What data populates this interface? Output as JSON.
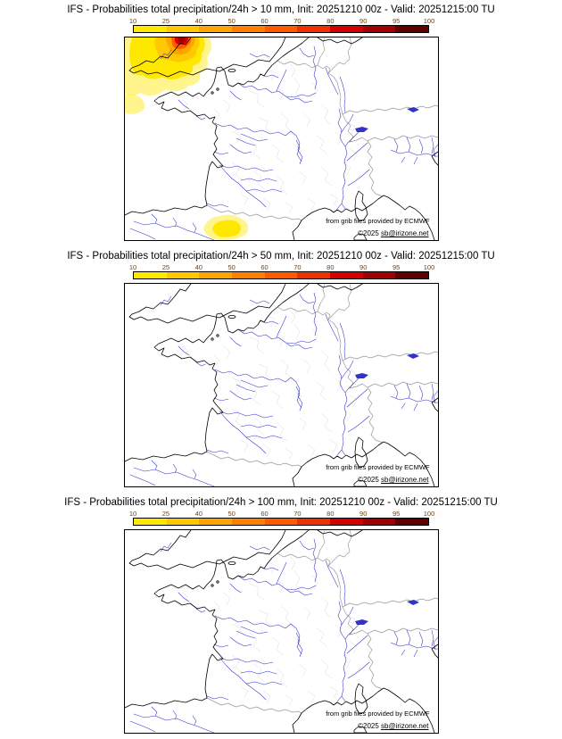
{
  "panels": [
    {
      "title": "IFS - Probabilities total precipitation/24h > 10 mm, Init: 20251210 00z - Valid: 20251215:00 TU",
      "attribution": "from grib files provided by ECMWF",
      "copyright_prefix": "©2025 ",
      "copyright_email": "sb@irizone.net",
      "overlay": true
    },
    {
      "title": "IFS - Probabilities total precipitation/24h > 50 mm, Init: 20251210 00z - Valid: 20251215:00 TU",
      "attribution": "from grib files provided by ECMWF",
      "copyright_prefix": "©2025 ",
      "copyright_email": "sb@irizone.net",
      "overlay": false
    },
    {
      "title": "IFS - Probabilities total precipitation/24h > 100 mm, Init: 20251210 00z - Valid: 20251215:00 TU",
      "attribution": "from grib files provided by ECMWF",
      "copyright_prefix": "©2025 ",
      "copyright_email": "sb@irizone.net",
      "overlay": false
    }
  ],
  "colorbar": {
    "ticks": [
      "10",
      "25",
      "40",
      "50",
      "60",
      "70",
      "80",
      "90",
      "95",
      "100"
    ],
    "colors": [
      "#ffe800",
      "#ffc800",
      "#ffa500",
      "#ff8000",
      "#ff5a00",
      "#f03000",
      "#d40000",
      "#a00000",
      "#5f0000"
    ],
    "label_color": "#7b3f00",
    "border_color": "#000000"
  },
  "map_colors": {
    "coast": "#000000",
    "border": "#9a9a9a",
    "department": "#cfcfcf",
    "river": "#3333cc",
    "sea": "#ffffff"
  }
}
